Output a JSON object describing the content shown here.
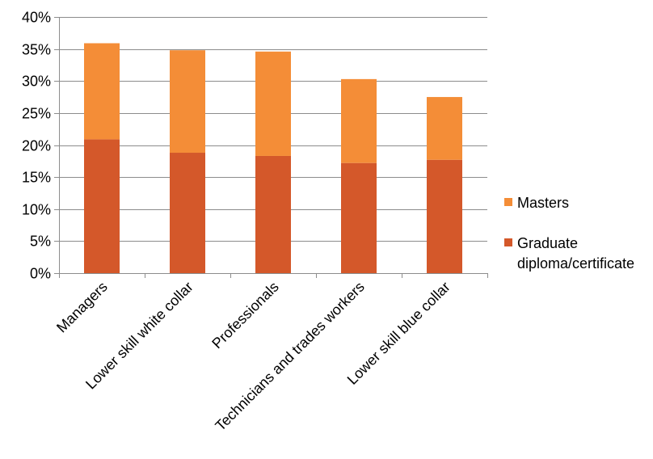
{
  "chart_data": {
    "type": "bar",
    "stacked": true,
    "title": "",
    "xlabel": "",
    "ylabel": "",
    "ylim": [
      0,
      40
    ],
    "y_ticks": [
      "0%",
      "5%",
      "10%",
      "15%",
      "20%",
      "25%",
      "30%",
      "35%",
      "40%"
    ],
    "y_tick_values": [
      0,
      5,
      10,
      15,
      20,
      25,
      30,
      35,
      40
    ],
    "grid": true,
    "legend_position": "right",
    "categories": [
      "Managers",
      "Lower skill white collar",
      "Professionals",
      "Technicians and trades workers",
      "Lower skill blue collar"
    ],
    "series": [
      {
        "name": "Graduate diploma/certificate",
        "legend_lines": [
          "Graduate",
          "diploma/certificate"
        ],
        "color": "#D4582A",
        "values": [
          20.9,
          18.8,
          18.3,
          17.2,
          17.7
        ]
      },
      {
        "name": "Masters",
        "legend_lines": [
          "Masters"
        ],
        "color": "#F48D37",
        "values": [
          15.0,
          16.0,
          16.3,
          13.1,
          9.8
        ]
      }
    ]
  }
}
